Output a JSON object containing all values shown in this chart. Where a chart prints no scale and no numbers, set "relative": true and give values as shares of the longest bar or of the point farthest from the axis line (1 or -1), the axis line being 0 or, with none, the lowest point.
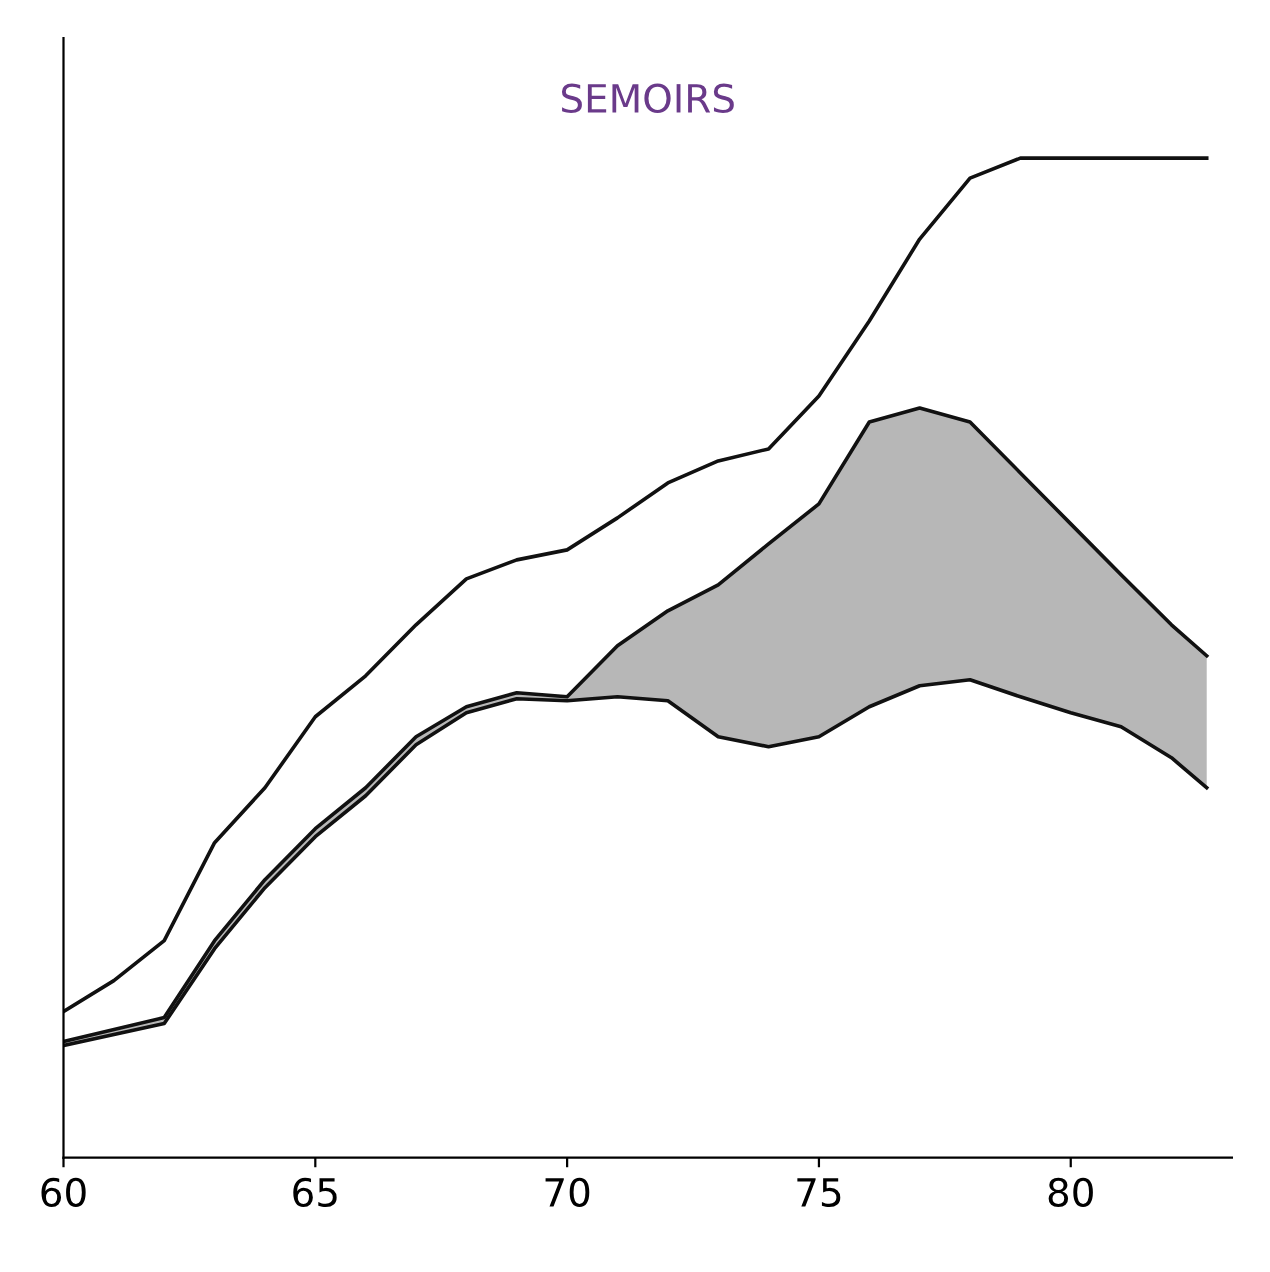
{
  "chart_data": {
    "type": "line",
    "title": "SEMOIRS",
    "relative": true,
    "xlim": [
      60,
      83.2
    ],
    "xticks": [
      60,
      65,
      70,
      75,
      80
    ],
    "tick_labels": "x",
    "grid": false,
    "legend": false,
    "marker": "none",
    "line_style": "solid",
    "series": [
      {
        "color": "#111111",
        "x": [
          60,
          61,
          62,
          63,
          64,
          65,
          66,
          67,
          68,
          69,
          70,
          71,
          72,
          73,
          74,
          75,
          76,
          77,
          78,
          79,
          80,
          82.7
        ],
        "values": [
          0.146,
          0.177,
          0.217,
          0.315,
          0.37,
          0.441,
          0.482,
          0.533,
          0.579,
          0.598,
          0.608,
          0.64,
          0.675,
          0.697,
          0.709,
          0.762,
          0.837,
          0.919,
          0.98,
          1,
          1,
          1
        ]
      },
      {
        "color": "#111111",
        "x": [
          60,
          62,
          63,
          64,
          65,
          66,
          67,
          68,
          69,
          70,
          71,
          72,
          73,
          74,
          75,
          76,
          77,
          78,
          79,
          80,
          81,
          82,
          82.7
        ],
        "values": [
          0.116,
          0.14,
          0.217,
          0.278,
          0.329,
          0.37,
          0.421,
          0.451,
          0.465,
          0.461,
          0.512,
          0.547,
          0.573,
          0.614,
          0.654,
          0.736,
          0.75,
          0.736,
          0.685,
          0.634,
          0.583,
          0.533,
          0.502
        ],
        "lower": [
          0.112,
          0.134,
          0.209,
          0.27,
          0.321,
          0.362,
          0.413,
          0.445,
          0.459,
          0.457,
          0.461,
          0.457,
          0.421,
          0.411,
          0.421,
          0.451,
          0.472,
          0.478,
          0.461,
          0.445,
          0.431,
          0.4,
          0.37
        ],
        "upper": [
          0.116,
          0.14,
          0.217,
          0.278,
          0.329,
          0.37,
          0.421,
          0.451,
          0.465,
          0.461,
          0.512,
          0.547,
          0.573,
          0.614,
          0.654,
          0.736,
          0.75,
          0.736,
          0.685,
          0.634,
          0.583,
          0.533,
          0.502
        ]
      },
      {
        "color": "#111111",
        "x": [
          60,
          62,
          63,
          64,
          65,
          66,
          67,
          68,
          69,
          70,
          71,
          72,
          73,
          74,
          75,
          76,
          77,
          78,
          79,
          80,
          81,
          82,
          82.7
        ],
        "values": [
          0.112,
          0.134,
          0.209,
          0.27,
          0.321,
          0.362,
          0.413,
          0.445,
          0.459,
          0.457,
          0.461,
          0.457,
          0.421,
          0.411,
          0.421,
          0.451,
          0.472,
          0.478,
          0.461,
          0.445,
          0.431,
          0.4,
          0.37
        ]
      }
    ]
  }
}
